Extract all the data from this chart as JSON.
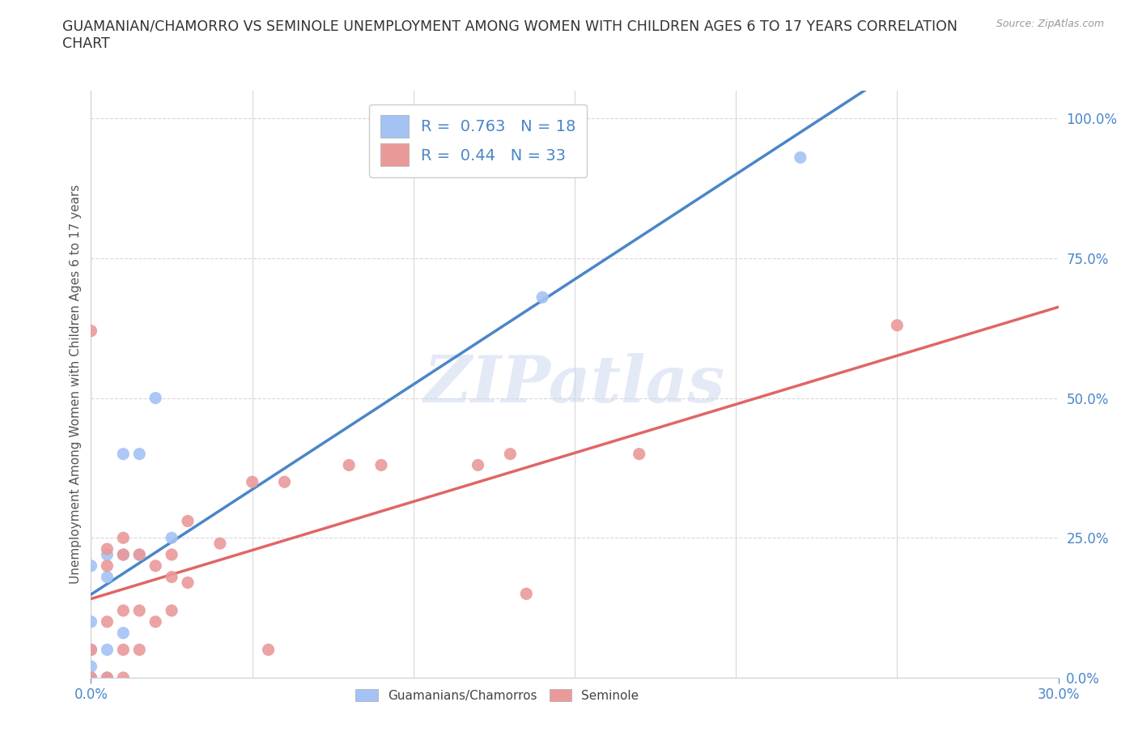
{
  "title": "GUAMANIAN/CHAMORRO VS SEMINOLE UNEMPLOYMENT AMONG WOMEN WITH CHILDREN AGES 6 TO 17 YEARS CORRELATION\nCHART",
  "source": "Source: ZipAtlas.com",
  "ylabel": "Unemployment Among Women with Children Ages 6 to 17 years",
  "xlim": [
    0.0,
    0.3
  ],
  "ylim": [
    0.0,
    1.05
  ],
  "yticks": [
    0.0,
    0.25,
    0.5,
    0.75,
    1.0
  ],
  "ytick_labels": [
    "0.0%",
    "25.0%",
    "50.0%",
    "75.0%",
    "100.0%"
  ],
  "xtick_labels": [
    "0.0%",
    "30.0%"
  ],
  "blue_color": "#a4c2f4",
  "pink_color": "#ea9999",
  "blue_line_color": "#4a86c8",
  "pink_line_color": "#e06666",
  "R_blue": 0.763,
  "N_blue": 18,
  "R_pink": 0.44,
  "N_pink": 33,
  "watermark": "ZIPatlas",
  "blue_scatter_x": [
    0.0,
    0.0,
    0.0,
    0.0,
    0.0,
    0.005,
    0.005,
    0.005,
    0.005,
    0.01,
    0.01,
    0.01,
    0.015,
    0.015,
    0.02,
    0.025,
    0.14,
    0.22
  ],
  "blue_scatter_y": [
    0.0,
    0.02,
    0.05,
    0.1,
    0.2,
    0.0,
    0.05,
    0.18,
    0.22,
    0.08,
    0.22,
    0.4,
    0.22,
    0.4,
    0.5,
    0.25,
    0.68,
    0.93
  ],
  "pink_scatter_x": [
    0.0,
    0.0,
    0.0,
    0.005,
    0.005,
    0.005,
    0.005,
    0.01,
    0.01,
    0.01,
    0.01,
    0.01,
    0.015,
    0.015,
    0.015,
    0.02,
    0.02,
    0.025,
    0.025,
    0.025,
    0.03,
    0.03,
    0.04,
    0.05,
    0.055,
    0.06,
    0.08,
    0.09,
    0.12,
    0.13,
    0.135,
    0.17,
    0.25
  ],
  "pink_scatter_y": [
    0.0,
    0.05,
    0.62,
    0.0,
    0.1,
    0.2,
    0.23,
    0.0,
    0.05,
    0.12,
    0.22,
    0.25,
    0.05,
    0.12,
    0.22,
    0.1,
    0.2,
    0.12,
    0.18,
    0.22,
    0.17,
    0.28,
    0.24,
    0.35,
    0.05,
    0.35,
    0.38,
    0.38,
    0.38,
    0.4,
    0.15,
    0.4,
    0.63
  ],
  "background_color": "#ffffff",
  "grid_color": "#d8d8d8"
}
